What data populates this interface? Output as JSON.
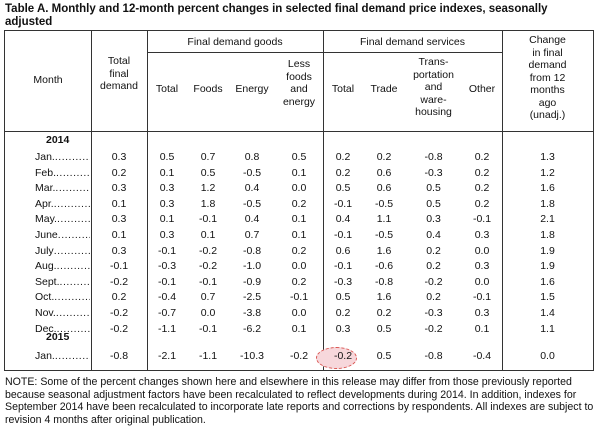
{
  "title": "Table A. Monthly and 12-month percent changes in selected final demand price indexes, seasonally adjusted",
  "headers": {
    "month": "Month",
    "total_final_demand": [
      "Total",
      "final",
      "demand"
    ],
    "group_goods": "Final demand goods",
    "group_services": "Final demand services",
    "change": [
      "Change",
      "in final",
      "demand",
      "from 12",
      "months",
      "ago",
      "(unadj.)"
    ],
    "goods_total": "Total",
    "foods": "Foods",
    "energy": "Energy",
    "less_foods_energy": [
      "Less",
      "foods",
      "and",
      "energy"
    ],
    "services_total": "Total",
    "trade": "Trade",
    "transportation": [
      "Trans-",
      "portation",
      "and",
      "ware-",
      "housing"
    ],
    "other": "Other"
  },
  "years": [
    "2014",
    "2015"
  ],
  "rows": [
    {
      "month": "Jan.",
      "tfd": "0.3",
      "gt": "0.5",
      "foods": "0.7",
      "energy": "0.8",
      "lfe": "0.5",
      "st": "0.2",
      "trade": "0.2",
      "trans": "-0.8",
      "other": "0.2",
      "chg": "1.3"
    },
    {
      "month": "Feb.",
      "tfd": "0.2",
      "gt": "0.1",
      "foods": "0.5",
      "energy": "-0.5",
      "lfe": "0.1",
      "st": "0.2",
      "trade": "0.6",
      "trans": "-0.3",
      "other": "0.2",
      "chg": "1.2"
    },
    {
      "month": "Mar.",
      "tfd": "0.3",
      "gt": "0.3",
      "foods": "1.2",
      "energy": "0.4",
      "lfe": "0.0",
      "st": "0.5",
      "trade": "0.6",
      "trans": "0.5",
      "other": "0.2",
      "chg": "1.6"
    },
    {
      "month": "Apr.",
      "tfd": "0.1",
      "gt": "0.3",
      "foods": "1.8",
      "energy": "-0.5",
      "lfe": "0.2",
      "st": "-0.1",
      "trade": "-0.5",
      "trans": "0.5",
      "other": "0.2",
      "chg": "1.8"
    },
    {
      "month": "May.",
      "tfd": "0.3",
      "gt": "0.1",
      "foods": "-0.1",
      "energy": "0.4",
      "lfe": "0.1",
      "st": "0.4",
      "trade": "1.1",
      "trans": "0.3",
      "other": "-0.1",
      "chg": "2.1"
    },
    {
      "month": "June",
      "tfd": "0.1",
      "gt": "0.3",
      "foods": "0.1",
      "energy": "0.7",
      "lfe": "0.1",
      "st": "-0.1",
      "trade": "-0.5",
      "trans": "0.4",
      "other": "0.3",
      "chg": "1.8"
    },
    {
      "month": "July",
      "tfd": "0.3",
      "gt": "-0.1",
      "foods": "-0.2",
      "energy": "-0.8",
      "lfe": "0.2",
      "st": "0.6",
      "trade": "1.6",
      "trans": "0.2",
      "other": "0.0",
      "chg": "1.9"
    },
    {
      "month": "Aug.",
      "tfd": "-0.1",
      "gt": "-0.3",
      "foods": "-0.2",
      "energy": "-1.0",
      "lfe": "0.0",
      "st": "-0.1",
      "trade": "-0.6",
      "trans": "0.2",
      "other": "0.3",
      "chg": "1.9"
    },
    {
      "month": "Sept.",
      "tfd": "-0.2",
      "gt": "-0.1",
      "foods": "-0.1",
      "energy": "-0.9",
      "lfe": "0.2",
      "st": "-0.3",
      "trade": "-0.8",
      "trans": "-0.2",
      "other": "0.0",
      "chg": "1.6"
    },
    {
      "month": "Oct.",
      "tfd": "0.2",
      "gt": "-0.4",
      "foods": "0.7",
      "energy": "-2.5",
      "lfe": "-0.1",
      "st": "0.5",
      "trade": "1.6",
      "trans": "0.2",
      "other": "-0.1",
      "chg": "1.5"
    },
    {
      "month": "Nov.",
      "tfd": "-0.2",
      "gt": "-0.7",
      "foods": "0.0",
      "energy": "-3.8",
      "lfe": "0.0",
      "st": "0.2",
      "trade": "0.2",
      "trans": "-0.3",
      "other": "0.3",
      "chg": "1.4"
    },
    {
      "month": "Dec.",
      "tfd": "-0.2",
      "gt": "-1.1",
      "foods": "-0.1",
      "energy": "-6.2",
      "lfe": "0.1",
      "st": "0.3",
      "trade": "0.5",
      "trans": "-0.2",
      "other": "0.1",
      "chg": "1.1"
    },
    {
      "month": "Jan.",
      "tfd": "-0.8",
      "gt": "-2.1",
      "foods": "-1.1",
      "energy": "-10.3",
      "lfe": "-0.2",
      "st": "-0.2",
      "trade": "0.5",
      "trans": "-0.8",
      "other": "-0.4",
      "chg": "0.0"
    }
  ],
  "note": "NOTE: Some of the percent changes shown here and elsewhere in this release may differ from those previously reported because seasonal adjustment factors have been recalculated to reflect developments during 2014. In addition, indexes for September 2014 have been recalculated to incorporate late reports and corrections by respondents. All indexes are subject to revision 4 months after original publication.",
  "colors": {
    "highlight_fill": "#f7d7db",
    "highlight_border": "#d9534f",
    "rules": "#333333"
  }
}
